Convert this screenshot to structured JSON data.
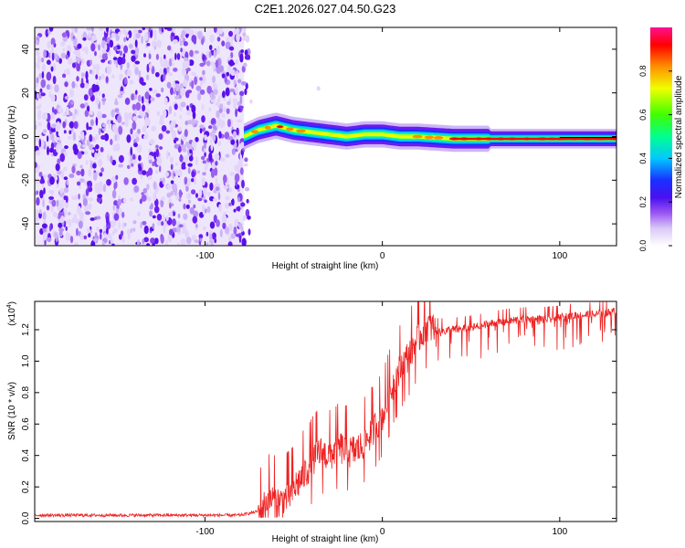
{
  "title": "C2E1.2026.027.04.50.G23",
  "chart_data": [
    {
      "type": "heatmap",
      "title": "C2E1.2026.027.04.50.G23",
      "xlabel": "Height of straight line (km)",
      "ylabel": "Frequency (Hz)",
      "xlim": [
        -196,
        132
      ],
      "ylim": [
        -50,
        50
      ],
      "xticks": [
        -100,
        0,
        100
      ],
      "yticks": [
        -40,
        -20,
        0,
        20,
        40
      ],
      "noise_region_x": [
        -196,
        -78
      ],
      "signal_ridge": {
        "x": [
          -78,
          -70,
          -60,
          -50,
          -40,
          -30,
          -20,
          -10,
          0,
          10,
          20,
          40,
          60,
          80,
          100,
          110,
          132
        ],
        "freq": [
          0,
          3,
          5,
          3,
          2,
          1,
          0,
          1,
          1,
          0,
          0,
          -1,
          -1,
          -1,
          -1,
          -1,
          -1
        ],
        "amplitude": [
          0.5,
          0.85,
          0.9,
          0.85,
          0.8,
          0.7,
          0.6,
          0.75,
          0.65,
          0.7,
          0.85,
          0.9,
          0.92,
          0.95,
          0.85,
          0.6,
          0.7
        ]
      },
      "colorbar": {
        "label": "Normalized spectral amplitude",
        "range": [
          0,
          1
        ],
        "ticks": [
          "0.0",
          "0.2",
          "0.4",
          "0.6",
          "0.8"
        ],
        "tick_values": [
          0,
          0.2,
          0.4,
          0.6,
          0.8
        ],
        "colors": [
          "#ffffff",
          "#c9b2f5",
          "#7a2ff0",
          "#2020ff",
          "#00c8ff",
          "#00ff80",
          "#40ff00",
          "#ffff00",
          "#ff9000",
          "#ff0000",
          "#ff1090"
        ]
      }
    },
    {
      "type": "line",
      "xlabel": "Height of straight line (km)",
      "ylabel": "SNR (10 * v/v)",
      "scale_note": "(x10",
      "scale_exponent": "4",
      "xlim": [
        -196,
        132
      ],
      "ylim": [
        -0.02,
        1.38
      ],
      "xticks": [
        -100,
        0,
        100
      ],
      "yticks": [
        "0.0",
        "0.2",
        "0.4",
        "0.6",
        "0.8",
        "1.0",
        "1.2"
      ],
      "ytick_values": [
        0,
        0.2,
        0.4,
        0.6,
        0.8,
        1.0,
        1.2
      ],
      "series": [
        {
          "name": "SNR",
          "color": "#ee2222",
          "x": [
            -196,
            -150,
            -100,
            -80,
            -68,
            -64,
            -58,
            -52,
            -48,
            -44,
            -40,
            -36,
            -30,
            -24,
            -18,
            -12,
            -6,
            0,
            6,
            10,
            14,
            18,
            22,
            26,
            30,
            36,
            44,
            52,
            60,
            70,
            80,
            90,
            100,
            110,
            120,
            132
          ],
          "y": [
            0.02,
            0.02,
            0.02,
            0.02,
            0.05,
            0.13,
            0.1,
            0.15,
            0.22,
            0.28,
            0.35,
            0.42,
            0.4,
            0.45,
            0.42,
            0.45,
            0.55,
            0.65,
            0.85,
            0.95,
            1.02,
            1.1,
            1.18,
            1.23,
            1.2,
            1.2,
            1.21,
            1.22,
            1.24,
            1.26,
            1.27,
            1.27,
            1.28,
            1.3,
            1.3,
            1.32
          ]
        }
      ]
    }
  ]
}
